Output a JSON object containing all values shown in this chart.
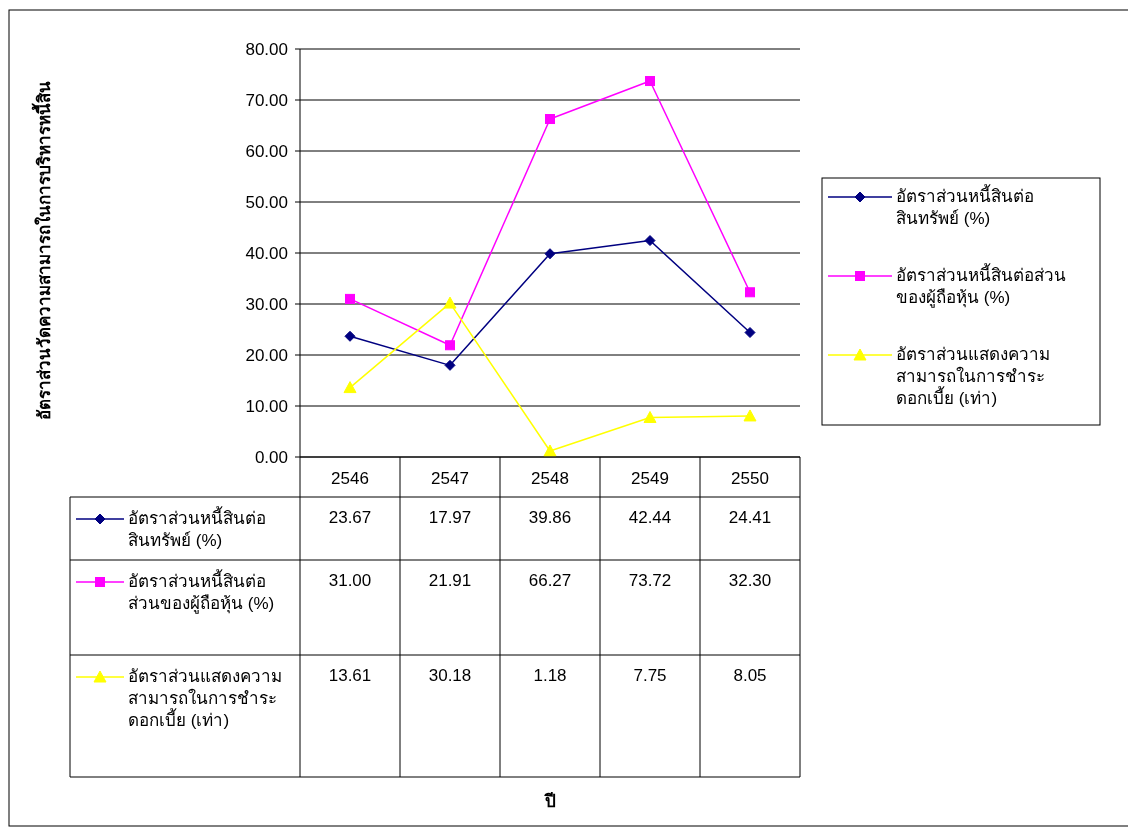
{
  "chart_data": {
    "type": "line",
    "annotations": [
      "อัตราส่วนวัดความสามารถในการบริหารหนี้สิน",
      "ปี"
    ],
    "categories": [
      "2546",
      "2547",
      "2548",
      "2549",
      "2550"
    ],
    "ylim": [
      0,
      80
    ],
    "yticks": [
      {
        "value": 0,
        "label": "0.00"
      },
      {
        "value": 10,
        "label": "10.00"
      },
      {
        "value": 20,
        "label": "20.00"
      },
      {
        "value": 30,
        "label": "30.00"
      },
      {
        "value": 40,
        "label": "40.00"
      },
      {
        "value": 50,
        "label": "50.00"
      },
      {
        "value": 60,
        "label": "60.00"
      },
      {
        "value": 70,
        "label": "70.00"
      },
      {
        "value": 80,
        "label": "80.00"
      }
    ],
    "grid": "y",
    "legend": "right",
    "series": [
      {
        "name": "อัตราส่วนหนี้สินต่อสินทรัพย์ (%)",
        "color": "#000080",
        "marker": "diamond",
        "values": [
          23.67,
          17.97,
          39.86,
          42.44,
          24.41
        ],
        "value_labels": [
          "23.67",
          "17.97",
          "39.86",
          "42.44",
          "24.41"
        ]
      },
      {
        "name": "อัตราส่วนหนี้สินต่อส่วนของผู้ถือหุ้น (%)",
        "color": "#ff00ff",
        "marker": "square",
        "values": [
          31.0,
          21.91,
          66.27,
          73.72,
          32.3
        ],
        "value_labels": [
          "31.00",
          "21.91",
          "66.27",
          "73.72",
          "32.30"
        ]
      },
      {
        "name": "อัตราส่วนแสดงความสามารถในการชำระดอกเบี้ย (เท่า)",
        "color": "#ffff00",
        "marker": "triangle",
        "values": [
          13.61,
          30.18,
          1.18,
          7.75,
          8.05
        ],
        "value_labels": [
          "13.61",
          "30.18",
          "1.18",
          "7.75",
          "8.05"
        ]
      }
    ]
  }
}
